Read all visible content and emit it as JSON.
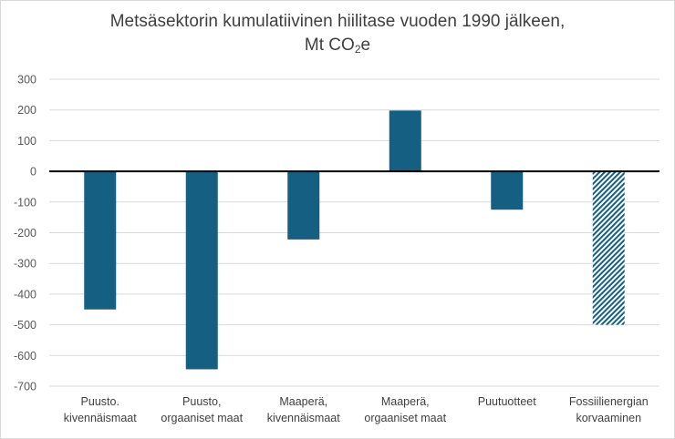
{
  "chart_data": {
    "type": "bar",
    "title": "Metsäsektorin kumulatiivinen hiilitase vuoden 1990 jälkeen,",
    "title_line2_prefix": "Mt CO",
    "title_line2_sub": "2",
    "title_line2_suffix": "e",
    "categories": [
      [
        "Puusto.",
        "kivennäismaat"
      ],
      [
        "Puusto,",
        "orgaaniset maat"
      ],
      [
        "Maaperä,",
        "kivennäismaat"
      ],
      [
        "Maaperä,",
        "orgaaniset maat"
      ],
      [
        "Puutuotteet"
      ],
      [
        "Fossiilienergian",
        "korvaaminen"
      ]
    ],
    "values": [
      -450,
      -645,
      -222,
      198,
      -125,
      -500
    ],
    "hatched": [
      false,
      false,
      false,
      false,
      false,
      true
    ],
    "ylim": [
      -700,
      300
    ],
    "yticks": [
      300,
      200,
      100,
      0,
      -100,
      -200,
      -300,
      -400,
      -500,
      -600,
      -700
    ],
    "grid": true,
    "colors": {
      "bar": "#155f82",
      "hatch": "#155f82",
      "grid": "#d9d9d9",
      "zero_line": "#000000"
    }
  }
}
